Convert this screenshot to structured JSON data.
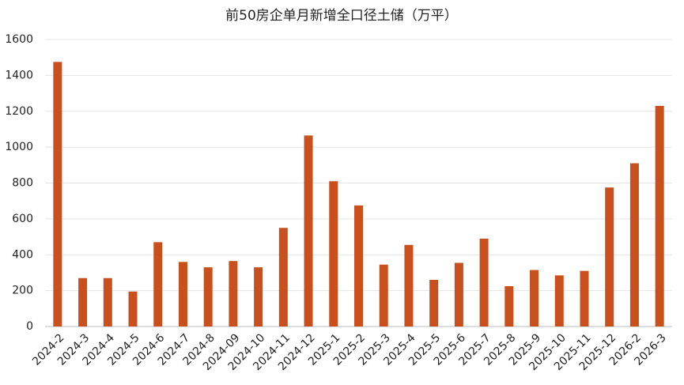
{
  "chart_data": {
    "type": "bar",
    "title": "前50房企单月新增全口径土储（万平）",
    "categories": [
      "2024-2",
      "2024-3",
      "2024-4",
      "2024-5",
      "2024-6",
      "2024-7",
      "2024-8",
      "2024-09",
      "2024-10",
      "2024-11",
      "2024-12",
      "2025-1",
      "2025-2",
      "2025-3",
      "2025-4",
      "2025-5",
      "2025-6",
      "2025-7",
      "2025-8",
      "2025-9",
      "2025-10",
      "2025-11",
      "2025-12",
      "2026-2",
      "2026-3"
    ],
    "values": [
      1475,
      270,
      270,
      195,
      470,
      360,
      330,
      365,
      330,
      550,
      1065,
      810,
      675,
      345,
      455,
      260,
      355,
      490,
      225,
      315,
      285,
      310,
      775,
      910,
      1230
    ],
    "color": "#c9501c",
    "ylim": [
      0,
      1600
    ],
    "yticks": [
      0,
      200,
      400,
      600,
      800,
      1000,
      1200,
      1400,
      1600
    ],
    "grid": true
  }
}
